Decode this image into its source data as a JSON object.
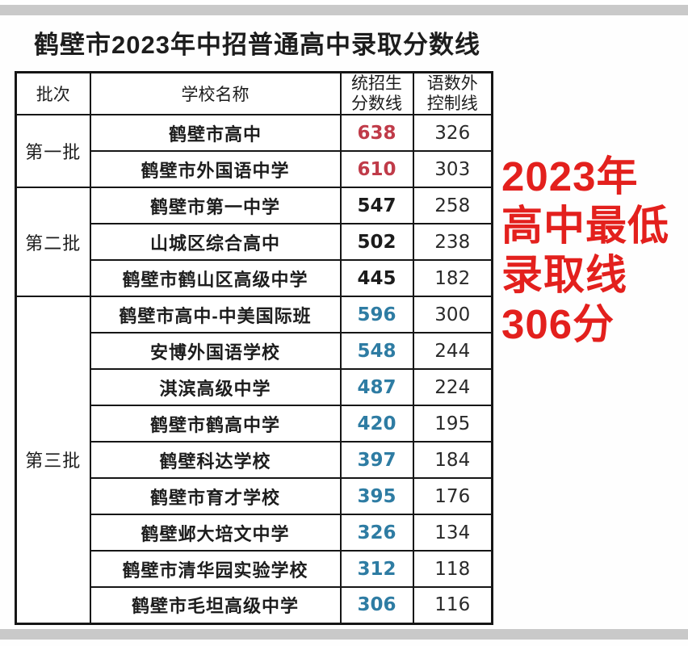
{
  "page": {
    "title": "鹤壁市2023年中招普通高中录取分数线"
  },
  "table": {
    "header": {
      "batch": "批次",
      "school": "学校名称",
      "unified": [
        "统招生",
        "分数线"
      ],
      "control": [
        "语数外",
        "控制线"
      ]
    },
    "batches": [
      {
        "label": "第一批",
        "rows": [
          {
            "school": "鹤壁市高中",
            "unified": "638",
            "control": "326"
          },
          {
            "school": "鹤壁市外国语中学",
            "unified": "610",
            "control": "303"
          }
        ]
      },
      {
        "label": "第二批",
        "rows": [
          {
            "school": "鹤壁市第一中学",
            "unified": "547",
            "control": "258"
          },
          {
            "school": "山城区综合高中",
            "unified": "502",
            "control": "238"
          },
          {
            "school": "鹤壁市鹤山区高级中学",
            "unified": "445",
            "control": "182"
          }
        ]
      },
      {
        "label": "第三批",
        "rows": [
          {
            "school": "鹤壁市高中-中美国际班",
            "unified": "596",
            "control": "300"
          },
          {
            "school": "安博外国语学校",
            "unified": "548",
            "control": "244"
          },
          {
            "school": "淇滨高级中学",
            "unified": "487",
            "control": "224"
          },
          {
            "school": "鹤壁市鹤高中学",
            "unified": "420",
            "control": "195"
          },
          {
            "school": "鹤壁科达学校",
            "unified": "397",
            "control": "184"
          },
          {
            "school": "鹤壁市育才学校",
            "unified": "395",
            "control": "176"
          },
          {
            "school": "鹤壁邺大培文中学",
            "unified": "326",
            "control": "134"
          },
          {
            "school": "鹤壁市清华园实验学校",
            "unified": "312",
            "control": "118"
          },
          {
            "school": "鹤壁市毛坦高级中学",
            "unified": "306",
            "control": "116"
          }
        ]
      }
    ]
  },
  "annotation": {
    "lines": [
      "2023年",
      "高中最低",
      "录取线",
      "306分"
    ]
  },
  "colors": {
    "annotation_red": "#e3201d",
    "batch1_score_red": "#c03b49",
    "batch2_score_dark": "#1c1c1c",
    "batch3_score_blue": "#2e7ca3",
    "divider_gray": "#c9c9c9",
    "table_border": "#161616"
  }
}
